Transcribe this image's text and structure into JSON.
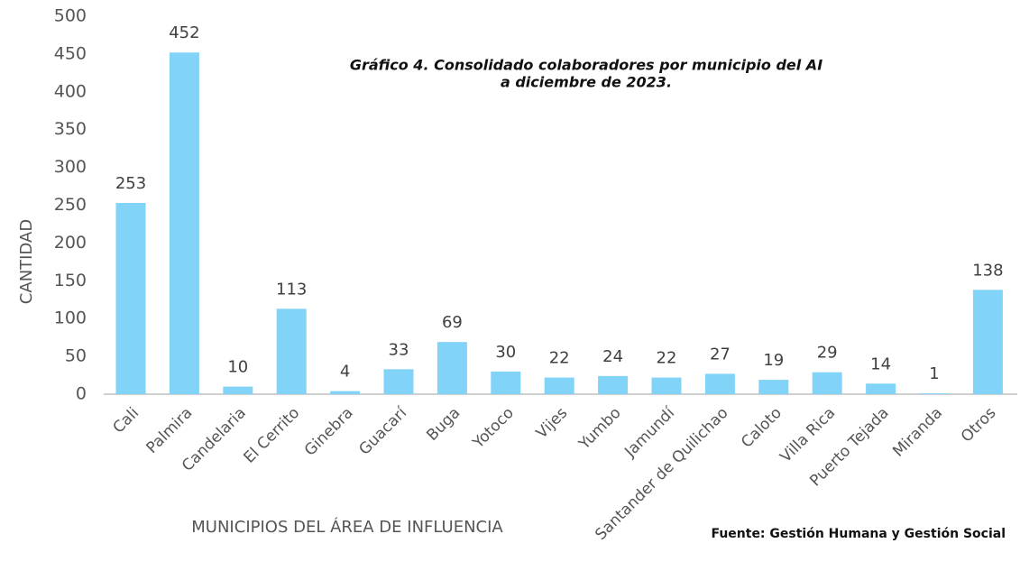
{
  "chart_data": {
    "type": "bar",
    "title": [
      "Gráfico  4. Consolidado colaboradores por municipio del AI",
      "a diciembre de 2023."
    ],
    "x_label": "MUNICIPIOS DEL ÁREA DE INFLUENCIA",
    "y_label": "CANTIDAD",
    "source": "Fuente: Gestión Humana y  Gestión Social",
    "categories": [
      "Cali",
      "Palmira",
      "Candelaria",
      "El Cerrito",
      "Ginebra",
      "Guacarí",
      "Buga",
      "Yotoco",
      "Vijes",
      "Yumbo",
      "Jamundí",
      "Santander de Quilichao",
      "Caloto",
      "Villa Rica",
      "Puerto Tejada",
      "Miranda",
      "Otros"
    ],
    "values": [
      253,
      452,
      10,
      113,
      4,
      33,
      69,
      30,
      22,
      24,
      22,
      27,
      19,
      29,
      14,
      1,
      138
    ],
    "color": "#82d3f8",
    "ylim": [
      0,
      500
    ],
    "yticks": [
      0,
      50,
      100,
      150,
      200,
      250,
      300,
      350,
      400,
      450,
      500
    ],
    "grid": false
  }
}
